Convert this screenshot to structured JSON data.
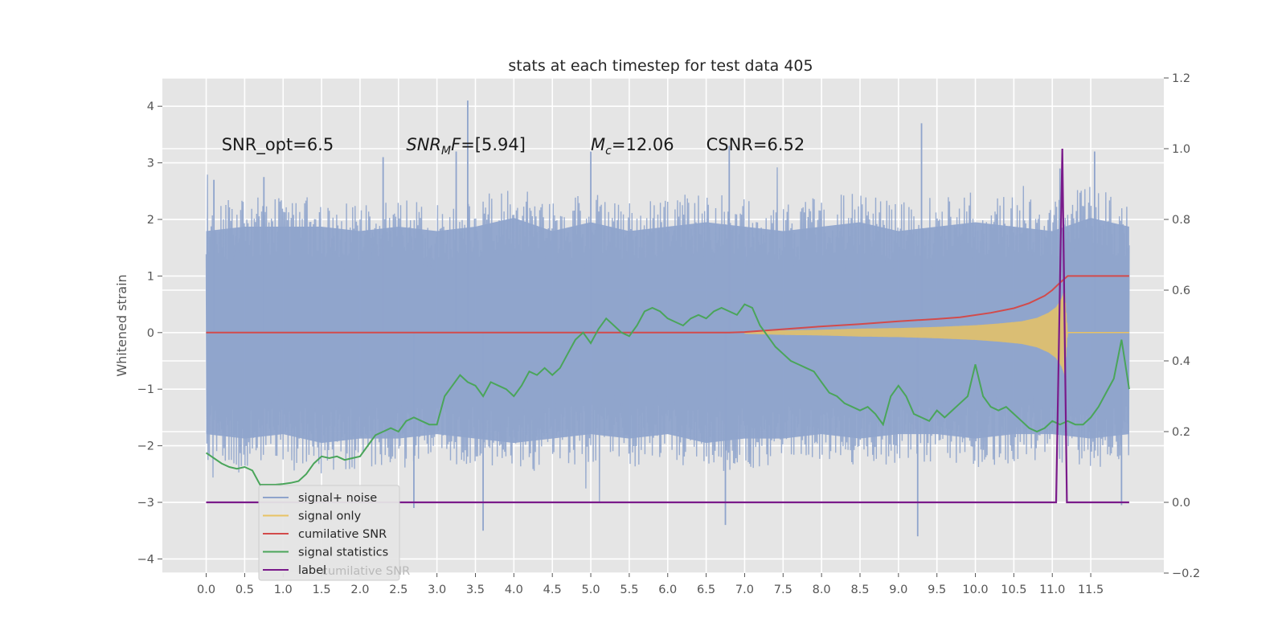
{
  "chart_data": {
    "type": "line",
    "title": "stats at each timestep for test data 405",
    "ylabel": "Whitened strain",
    "xlabel": "",
    "xlim": [
      -0.57,
      12.45
    ],
    "ylim": [
      -4.25,
      4.5
    ],
    "y2lim": [
      -0.2,
      1.2
    ],
    "grid": true,
    "legend_position": "lower-left",
    "x_ticks": [
      {
        "value": 0.0,
        "label": "0.0"
      },
      {
        "value": 0.5,
        "label": "0.5"
      },
      {
        "value": 1.0,
        "label": "1.0"
      },
      {
        "value": 1.5,
        "label": "1.5"
      },
      {
        "value": 2.0,
        "label": "2.0"
      },
      {
        "value": 2.5,
        "label": "2.5"
      },
      {
        "value": 3.0,
        "label": "3.0"
      },
      {
        "value": 3.5,
        "label": "3.5"
      },
      {
        "value": 4.0,
        "label": "4.0"
      },
      {
        "value": 4.5,
        "label": "4.5"
      },
      {
        "value": 5.0,
        "label": "5.0"
      },
      {
        "value": 5.5,
        "label": "5.5"
      },
      {
        "value": 6.0,
        "label": "6.0"
      },
      {
        "value": 6.5,
        "label": "6.5"
      },
      {
        "value": 7.0,
        "label": "7.0"
      },
      {
        "value": 7.5,
        "label": "7.5"
      },
      {
        "value": 8.0,
        "label": "8.0"
      },
      {
        "value": 8.5,
        "label": "8.5"
      },
      {
        "value": 9.0,
        "label": "9.0"
      },
      {
        "value": 9.5,
        "label": "9.5"
      },
      {
        "value": 10.0,
        "label": "10.0"
      },
      {
        "value": 10.5,
        "label": "10.5"
      },
      {
        "value": 11.0,
        "label": "11.0"
      },
      {
        "value": 11.5,
        "label": "11.5"
      }
    ],
    "y_ticks": [
      {
        "value": 4,
        "label": "4"
      },
      {
        "value": 3,
        "label": "3"
      },
      {
        "value": 2,
        "label": "2"
      },
      {
        "value": 1,
        "label": "1"
      },
      {
        "value": 0,
        "label": "0"
      },
      {
        "value": -1,
        "label": "−1"
      },
      {
        "value": -2,
        "label": "−2"
      },
      {
        "value": -3,
        "label": "−3"
      },
      {
        "value": -4,
        "label": "−4"
      }
    ],
    "y2_ticks": [
      {
        "value": 1.2,
        "label": "1.2"
      },
      {
        "value": 1.0,
        "label": "1.0"
      },
      {
        "value": 0.8,
        "label": "0.8"
      },
      {
        "value": 0.6,
        "label": "0.6"
      },
      {
        "value": 0.4,
        "label": "0.4"
      },
      {
        "value": 0.2,
        "label": "0.2"
      },
      {
        "value": 0.0,
        "label": "0.0"
      },
      {
        "value": -0.2,
        "label": "−0.2"
      }
    ],
    "annotations": [
      {
        "x": 0.2,
        "y": 3.32,
        "label": "SNR_opt=6.5"
      },
      {
        "x": 2.6,
        "y": 3.32,
        "label": "SNR_MF=[5.94]",
        "math": "snr_mf"
      },
      {
        "x": 5.0,
        "y": 3.32,
        "label": "M_c=12.06",
        "math": "mc"
      },
      {
        "x": 6.5,
        "y": 3.32,
        "label": "CSNR=6.52"
      }
    ],
    "series": [
      {
        "name": "signal+ noise",
        "axis": "left",
        "color": "#8fa4cc",
        "style": "noise",
        "x_range": [
          0.0,
          12.0
        ],
        "envelope_upper": [
          2.3,
          2.4,
          2.4,
          2.4,
          2.3,
          2.4,
          2.3,
          2.4,
          2.6,
          2.3,
          2.5,
          2.3,
          2.4,
          2.5,
          2.4,
          2.3,
          2.4,
          2.5,
          2.3,
          2.4,
          2.5,
          2.4,
          2.3,
          2.6,
          2.4
        ],
        "envelope_lower": [
          -2.3,
          -2.4,
          -2.3,
          -2.5,
          -2.4,
          -2.4,
          -2.3,
          -2.4,
          -2.5,
          -2.4,
          -2.3,
          -2.4,
          -2.3,
          -2.5,
          -2.4,
          -2.4,
          -2.3,
          -2.4,
          -2.3,
          -2.3,
          -2.4,
          -2.3,
          -2.3,
          -2.4,
          -2.3
        ],
        "peaks": [
          {
            "x": 0.1,
            "y": 2.7
          },
          {
            "x": 0.75,
            "y": 2.75
          },
          {
            "x": 2.3,
            "y": 3.1
          },
          {
            "x": 3.25,
            "y": 3.2
          },
          {
            "x": 3.4,
            "y": 4.1
          },
          {
            "x": 5.0,
            "y": 3.2
          },
          {
            "x": 6.8,
            "y": 3.3
          },
          {
            "x": 9.3,
            "y": 3.7
          },
          {
            "x": 11.1,
            "y": 2.9
          },
          {
            "x": 11.55,
            "y": 3.2
          },
          {
            "x": 3.6,
            "y": -3.5
          },
          {
            "x": 6.75,
            "y": -3.4
          },
          {
            "x": 9.25,
            "y": -3.6
          },
          {
            "x": 2.7,
            "y": -3.1
          },
          {
            "x": 11.9,
            "y": -3.05
          }
        ]
      },
      {
        "name": "signal only",
        "axis": "left",
        "color": "#e8c264",
        "style": "chirp",
        "x": [
          7.0,
          7.5,
          8.0,
          8.5,
          9.0,
          9.5,
          10.0,
          10.3,
          10.6,
          10.8,
          10.95,
          11.05,
          11.12,
          11.16,
          11.2
        ],
        "amplitude": [
          0.02,
          0.04,
          0.05,
          0.07,
          0.08,
          0.1,
          0.13,
          0.16,
          0.2,
          0.26,
          0.35,
          0.45,
          0.6,
          0.75,
          0.0
        ]
      },
      {
        "name": "cumilative SNR",
        "axis": "left",
        "color": "#d24b4b",
        "x": [
          0.0,
          6.8,
          7.0,
          7.5,
          8.0,
          8.5,
          9.0,
          9.5,
          9.8,
          10.2,
          10.5,
          10.7,
          10.9,
          11.0,
          11.1,
          11.2,
          12.0
        ],
        "y": [
          0.0,
          0.0,
          0.01,
          0.06,
          0.11,
          0.15,
          0.2,
          0.24,
          0.27,
          0.35,
          0.43,
          0.52,
          0.65,
          0.75,
          0.88,
          1.0,
          1.0
        ]
      },
      {
        "name": "signal statistics",
        "axis": "right",
        "color": "#4aa55a",
        "x": [
          0.0,
          0.1,
          0.2,
          0.3,
          0.4,
          0.5,
          0.6,
          0.7,
          0.8,
          0.9,
          1.0,
          1.1,
          1.2,
          1.3,
          1.4,
          1.5,
          1.6,
          1.7,
          1.8,
          1.9,
          2.0,
          2.1,
          2.2,
          2.3,
          2.4,
          2.5,
          2.6,
          2.7,
          2.8,
          2.9,
          3.0,
          3.1,
          3.2,
          3.3,
          3.4,
          3.5,
          3.6,
          3.7,
          3.8,
          3.9,
          4.0,
          4.1,
          4.2,
          4.3,
          4.4,
          4.5,
          4.6,
          4.7,
          4.8,
          4.9,
          5.0,
          5.1,
          5.2,
          5.3,
          5.4,
          5.5,
          5.6,
          5.7,
          5.8,
          5.9,
          6.0,
          6.1,
          6.2,
          6.3,
          6.4,
          6.5,
          6.6,
          6.7,
          6.8,
          6.9,
          7.0,
          7.1,
          7.2,
          7.3,
          7.4,
          7.5,
          7.6,
          7.7,
          7.8,
          7.9,
          8.0,
          8.1,
          8.2,
          8.3,
          8.4,
          8.5,
          8.6,
          8.7,
          8.8,
          8.9,
          9.0,
          9.1,
          9.2,
          9.3,
          9.4,
          9.5,
          9.6,
          9.7,
          9.8,
          9.9,
          10.0,
          10.1,
          10.2,
          10.3,
          10.4,
          10.5,
          10.6,
          10.7,
          10.8,
          10.9,
          11.0,
          11.1,
          11.2,
          11.3,
          11.4,
          11.5,
          11.6,
          11.7,
          11.8,
          11.9,
          12.0
        ],
        "y": [
          0.14,
          0.125,
          0.11,
          0.1,
          0.095,
          0.1,
          0.09,
          0.05,
          0.05,
          0.05,
          0.052,
          0.055,
          0.06,
          0.08,
          0.11,
          0.13,
          0.125,
          0.13,
          0.12,
          0.125,
          0.13,
          0.16,
          0.19,
          0.2,
          0.21,
          0.2,
          0.23,
          0.24,
          0.23,
          0.22,
          0.22,
          0.3,
          0.33,
          0.36,
          0.34,
          0.33,
          0.3,
          0.34,
          0.33,
          0.32,
          0.3,
          0.33,
          0.37,
          0.36,
          0.38,
          0.36,
          0.38,
          0.42,
          0.46,
          0.48,
          0.45,
          0.49,
          0.52,
          0.5,
          0.48,
          0.47,
          0.5,
          0.54,
          0.55,
          0.54,
          0.52,
          0.51,
          0.5,
          0.52,
          0.53,
          0.52,
          0.54,
          0.55,
          0.54,
          0.53,
          0.56,
          0.55,
          0.5,
          0.47,
          0.44,
          0.42,
          0.4,
          0.39,
          0.38,
          0.37,
          0.34,
          0.31,
          0.3,
          0.28,
          0.27,
          0.26,
          0.27,
          0.25,
          0.22,
          0.3,
          0.33,
          0.3,
          0.25,
          0.24,
          0.23,
          0.26,
          0.24,
          0.26,
          0.28,
          0.3,
          0.39,
          0.3,
          0.27,
          0.26,
          0.27,
          0.25,
          0.23,
          0.21,
          0.2,
          0.21,
          0.23,
          0.22,
          0.23,
          0.22,
          0.22,
          0.24,
          0.27,
          0.31,
          0.35,
          0.46,
          0.32
        ]
      },
      {
        "name": "label",
        "axis": "right",
        "color": "#7a1a8a",
        "x": [
          0.0,
          11.05,
          11.13,
          11.19,
          12.0
        ],
        "y": [
          0.0,
          0.0,
          1.0,
          0.0,
          0.0
        ]
      }
    ],
    "legend": {
      "entries": [
        "signal+ noise",
        "signal only",
        "cumilative SNR",
        "signal statistics",
        "label"
      ],
      "overlap_text": "cumilative SNR"
    }
  }
}
